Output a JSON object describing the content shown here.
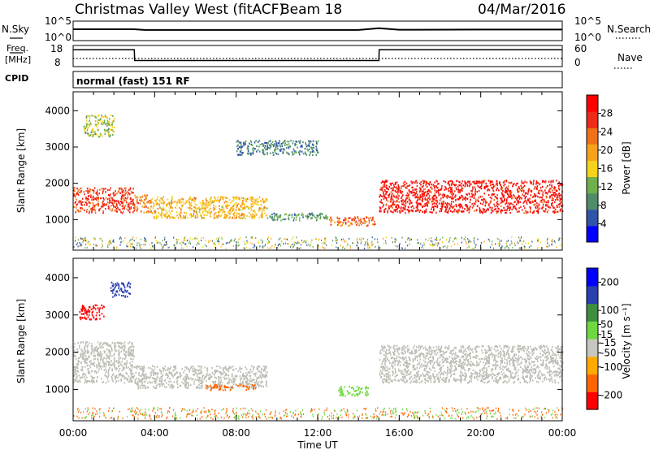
{
  "header": {
    "station": "Christmas Valley West (fitACF)",
    "beam": "Beam 18",
    "date": "04/Mar/2016"
  },
  "top_panels": {
    "nsky_label": "N.Sky",
    "nsearch_label": "N.Search",
    "nsky_ticks": [
      "10^5",
      "10^0"
    ],
    "freq_label_1": "Freq.",
    "freq_label_2": "[MHz]",
    "freq_ticks": [
      "18",
      "8"
    ],
    "nave_label": "Nave",
    "nave_ticks": [
      "60",
      "0"
    ],
    "cpid_label": "CPID",
    "cpid_text": "normal (fast) 151 RF"
  },
  "colors": {
    "power_scale": [
      "#0000ff",
      "#2f55a8",
      "#4f8c6a",
      "#6fb04d",
      "#f5d21c",
      "#f6a31a",
      "#f0711a",
      "#ee2a1b",
      "#ff0000"
    ],
    "velocity_scale": [
      "#ff0000",
      "#ff6600",
      "#ffaa00",
      "#c7c7c0",
      "#6fd840",
      "#3d8f3d",
      "#2a3fb0",
      "#0000ff"
    ],
    "ground_scatter": "#bdbdb4"
  },
  "chart_data": [
    {
      "type": "line",
      "name": "N.Sky",
      "x": [
        "00:00",
        "03:00",
        "03:30",
        "06:00",
        "12:00",
        "14:00",
        "15:00",
        "16:00",
        "20:00",
        "24:00"
      ],
      "y": [
        1000,
        1000,
        600,
        600,
        600,
        600,
        2000,
        700,
        800,
        800
      ],
      "yscale": "log",
      "ylim": [
        1,
        100000
      ],
      "title": "Christmas Valley West (fitACF) Beam 18 04/Mar/2016"
    },
    {
      "type": "line",
      "name": "Freq.",
      "x": [
        "00:00",
        "03:00",
        "03:01",
        "15:00",
        "15:01",
        "24:00"
      ],
      "y": [
        16.5,
        16.5,
        10.5,
        10.5,
        16.5,
        16.5
      ],
      "ylim": [
        8,
        18
      ],
      "ylabel": "Freq. [MHz]"
    },
    {
      "type": "heatmap",
      "name": "Power",
      "xlabel": "",
      "ylabel": "Slant Range [km]",
      "xlim": [
        "00:00",
        "24:00"
      ],
      "ylim": [
        180,
        4500
      ],
      "yticks": [
        1000,
        2000,
        3000,
        4000
      ],
      "colorbar_label": "Power [dB]",
      "colorbar_ticks": [
        4,
        8,
        12,
        16,
        20,
        24,
        28
      ],
      "colorbar_range": [
        0,
        32
      ],
      "regions": [
        {
          "t0": 0.0,
          "t1": 3.0,
          "r0": 1200,
          "r1": 1900,
          "value": 26
        },
        {
          "t0": 0.5,
          "t1": 2.0,
          "r0": 3300,
          "r1": 3900,
          "value": 14
        },
        {
          "t0": 3.0,
          "t1": 3.8,
          "r0": 1200,
          "r1": 1700,
          "value": 22
        },
        {
          "t0": 3.8,
          "t1": 9.5,
          "r0": 1050,
          "r1": 1650,
          "value": 18
        },
        {
          "t0": 9.5,
          "t1": 12.5,
          "r0": 1000,
          "r1": 1200,
          "value": 10
        },
        {
          "t0": 12.5,
          "t1": 14.8,
          "r0": 850,
          "r1": 1100,
          "value": 24
        },
        {
          "t0": 15.0,
          "t1": 24.0,
          "r0": 1200,
          "r1": 2100,
          "value": 28
        },
        {
          "t0": 8.0,
          "t1": 12.0,
          "r0": 2800,
          "r1": 3200,
          "value": 8
        }
      ]
    },
    {
      "type": "heatmap",
      "name": "Velocity",
      "xlabel": "Time UT",
      "ylabel": "Slant Range [km]",
      "xlim": [
        "00:00",
        "24:00"
      ],
      "ylim": [
        180,
        4500
      ],
      "xticks": [
        "00:00",
        "04:00",
        "08:00",
        "12:00",
        "16:00",
        "20:00",
        "00:00"
      ],
      "yticks": [
        1000,
        2000,
        3000,
        4000
      ],
      "colorbar_label": "Velocity [m s⁻¹]",
      "colorbar_ticks": [
        -200,
        -100,
        -50,
        -15,
        15,
        50,
        100,
        200
      ],
      "colorbar_range": [
        -250,
        250
      ],
      "regions": [
        {
          "t0": 0.0,
          "t1": 3.0,
          "r0": 1200,
          "r1": 2300,
          "value": 0
        },
        {
          "t0": 3.0,
          "t1": 9.5,
          "r0": 1050,
          "r1": 1650,
          "value": 0
        },
        {
          "t0": 15.0,
          "t1": 24.0,
          "r0": 1200,
          "r1": 2200,
          "value": 0
        },
        {
          "t0": 0.3,
          "t1": 1.5,
          "r0": 2900,
          "r1": 3300,
          "value": -200
        },
        {
          "t0": 1.8,
          "t1": 2.8,
          "r0": 3500,
          "r1": 3900,
          "value": 150
        },
        {
          "t0": 13.0,
          "t1": 14.5,
          "r0": 850,
          "r1": 1100,
          "value": 40
        },
        {
          "t0": 6.5,
          "t1": 9.0,
          "r0": 1000,
          "r1": 1150,
          "value": -60
        }
      ]
    }
  ]
}
